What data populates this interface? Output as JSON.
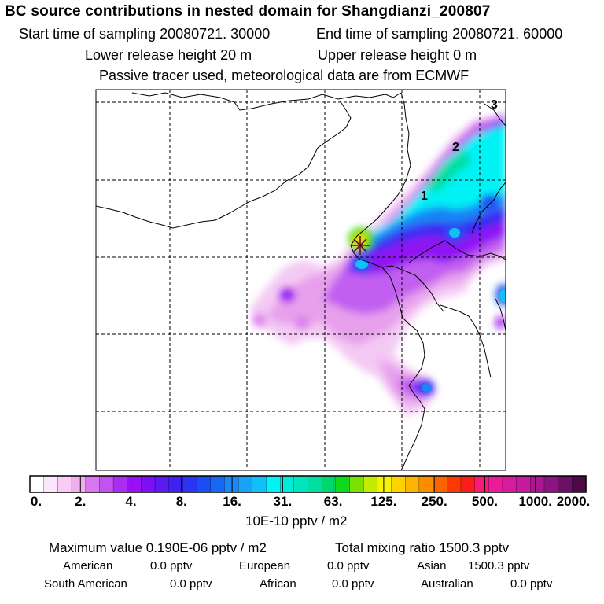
{
  "header": {
    "title": "BC  source contributions in nested domain for Shangdianzi_200807",
    "start_time": "Start time of sampling 20080721. 30000",
    "end_time": "End time of sampling 20080721. 60000",
    "lower_height": "Lower release height   20 m",
    "upper_height": "Upper release height    0 m",
    "tracer_note": "Passive tracer used, meteorological data are from ECMWF"
  },
  "map": {
    "contour_labels": [
      "1",
      "2",
      "3"
    ]
  },
  "colorbar": {
    "ticks": [
      "0.",
      "2.",
      "4.",
      "8.",
      "16.",
      "31.",
      "63.",
      "125.",
      "250.",
      "500.",
      "1000.",
      "2000."
    ],
    "units": "10E-10 pptv / m2",
    "colors": [
      "#ffffff",
      "#fde6fb",
      "#f9ccf6",
      "#f0b0f0",
      "#d977ee",
      "#c452f1",
      "#ae2cf2",
      "#9a0ff4",
      "#7a10f3",
      "#5a1af2",
      "#3f22f2",
      "#2a34f2",
      "#1a4ef3",
      "#1468f3",
      "#1e86f5",
      "#1aa2f7",
      "#12c0f8",
      "#00f3f5",
      "#00ecd8",
      "#00e6bc",
      "#00dea0",
      "#00d86c",
      "#10d81c",
      "#7ae000",
      "#c4ec00",
      "#f4f400",
      "#fcd200",
      "#fcb400",
      "#fc8c00",
      "#fc6400",
      "#fc3800",
      "#fc1c1c",
      "#f81a74",
      "#ec1a98",
      "#d81aa0",
      "#c81aa0",
      "#a81890",
      "#8c1480",
      "#6c1066",
      "#4c0a48"
    ]
  },
  "summary": {
    "max_value": "Maximum value  0.190E-06 pptv / m2",
    "total_mixing": "Total mixing ratio     1500.3 pptv"
  },
  "regions": [
    {
      "label": "American",
      "value": "0.0 pptv"
    },
    {
      "label": "European",
      "value": "0.0 pptv"
    },
    {
      "label": "Asian",
      "value": "1500.3 pptv"
    },
    {
      "label": "South American",
      "value": "0.0 pptv"
    },
    {
      "label": "African",
      "value": "0.0 pptv"
    },
    {
      "label": "Australian",
      "value": "0.0 pptv"
    }
  ]
}
